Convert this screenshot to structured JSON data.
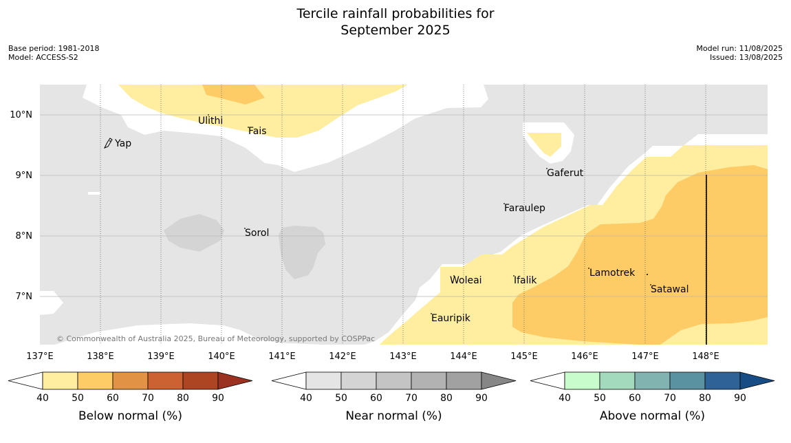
{
  "title_line1": "Tercile rainfall probabilities for",
  "title_line2": "September 2025",
  "meta_left": {
    "base_period": "Base period: 1981-2018",
    "model": "Model: ACCESS-S2"
  },
  "meta_right": {
    "model_run": "Model run: 11/08/2025",
    "issued": "Issued: 13/08/2025"
  },
  "map": {
    "lon_labels": [
      "137°E",
      "138°E",
      "139°E",
      "140°E",
      "141°E",
      "142°E",
      "143°E",
      "144°E",
      "145°E",
      "146°E",
      "147°E",
      "148°E"
    ],
    "lat_labels": [
      "10°N",
      "9°N",
      "8°N",
      "7°N"
    ],
    "places": [
      "Ulithi",
      "Fais",
      "Yap",
      "Gaferut",
      "Faraulep",
      "Sorol",
      "Lamotrek",
      "Woleai",
      "Ifalik",
      "Satawal",
      "Eauripik"
    ],
    "copyright": "© Commonwealth of Australia 2025, Bureau of Meteorology, supported by COSPPac",
    "colors": {
      "near_normal_grey": "#e5e5e5",
      "below_40_50": "#ffeda0",
      "below_50_60": "#fecc66",
      "land_grey": "#d4d4d4"
    }
  },
  "legends": [
    {
      "label": "Below normal (%)",
      "ticks": [
        "40",
        "50",
        "60",
        "70",
        "80",
        "90"
      ],
      "colors": [
        "#ffeda0",
        "#fecc66",
        "#e19244",
        "#cc6231",
        "#ae4522"
      ],
      "high": "#9b3120"
    },
    {
      "label": "Near normal (%)",
      "ticks": [
        "40",
        "50",
        "60",
        "70",
        "80",
        "90"
      ],
      "colors": [
        "#e5e5e5",
        "#d4d4d4",
        "#c4c4c4",
        "#b2b2b2",
        "#a1a1a1"
      ],
      "high": "#868686"
    },
    {
      "label": "Above normal (%)",
      "ticks": [
        "40",
        "50",
        "60",
        "70",
        "80",
        "90"
      ],
      "colors": [
        "#c8fccc",
        "#a3d9bd",
        "#81b4b0",
        "#5b92a1",
        "#2f6397"
      ],
      "high": "#174d84"
    }
  ]
}
